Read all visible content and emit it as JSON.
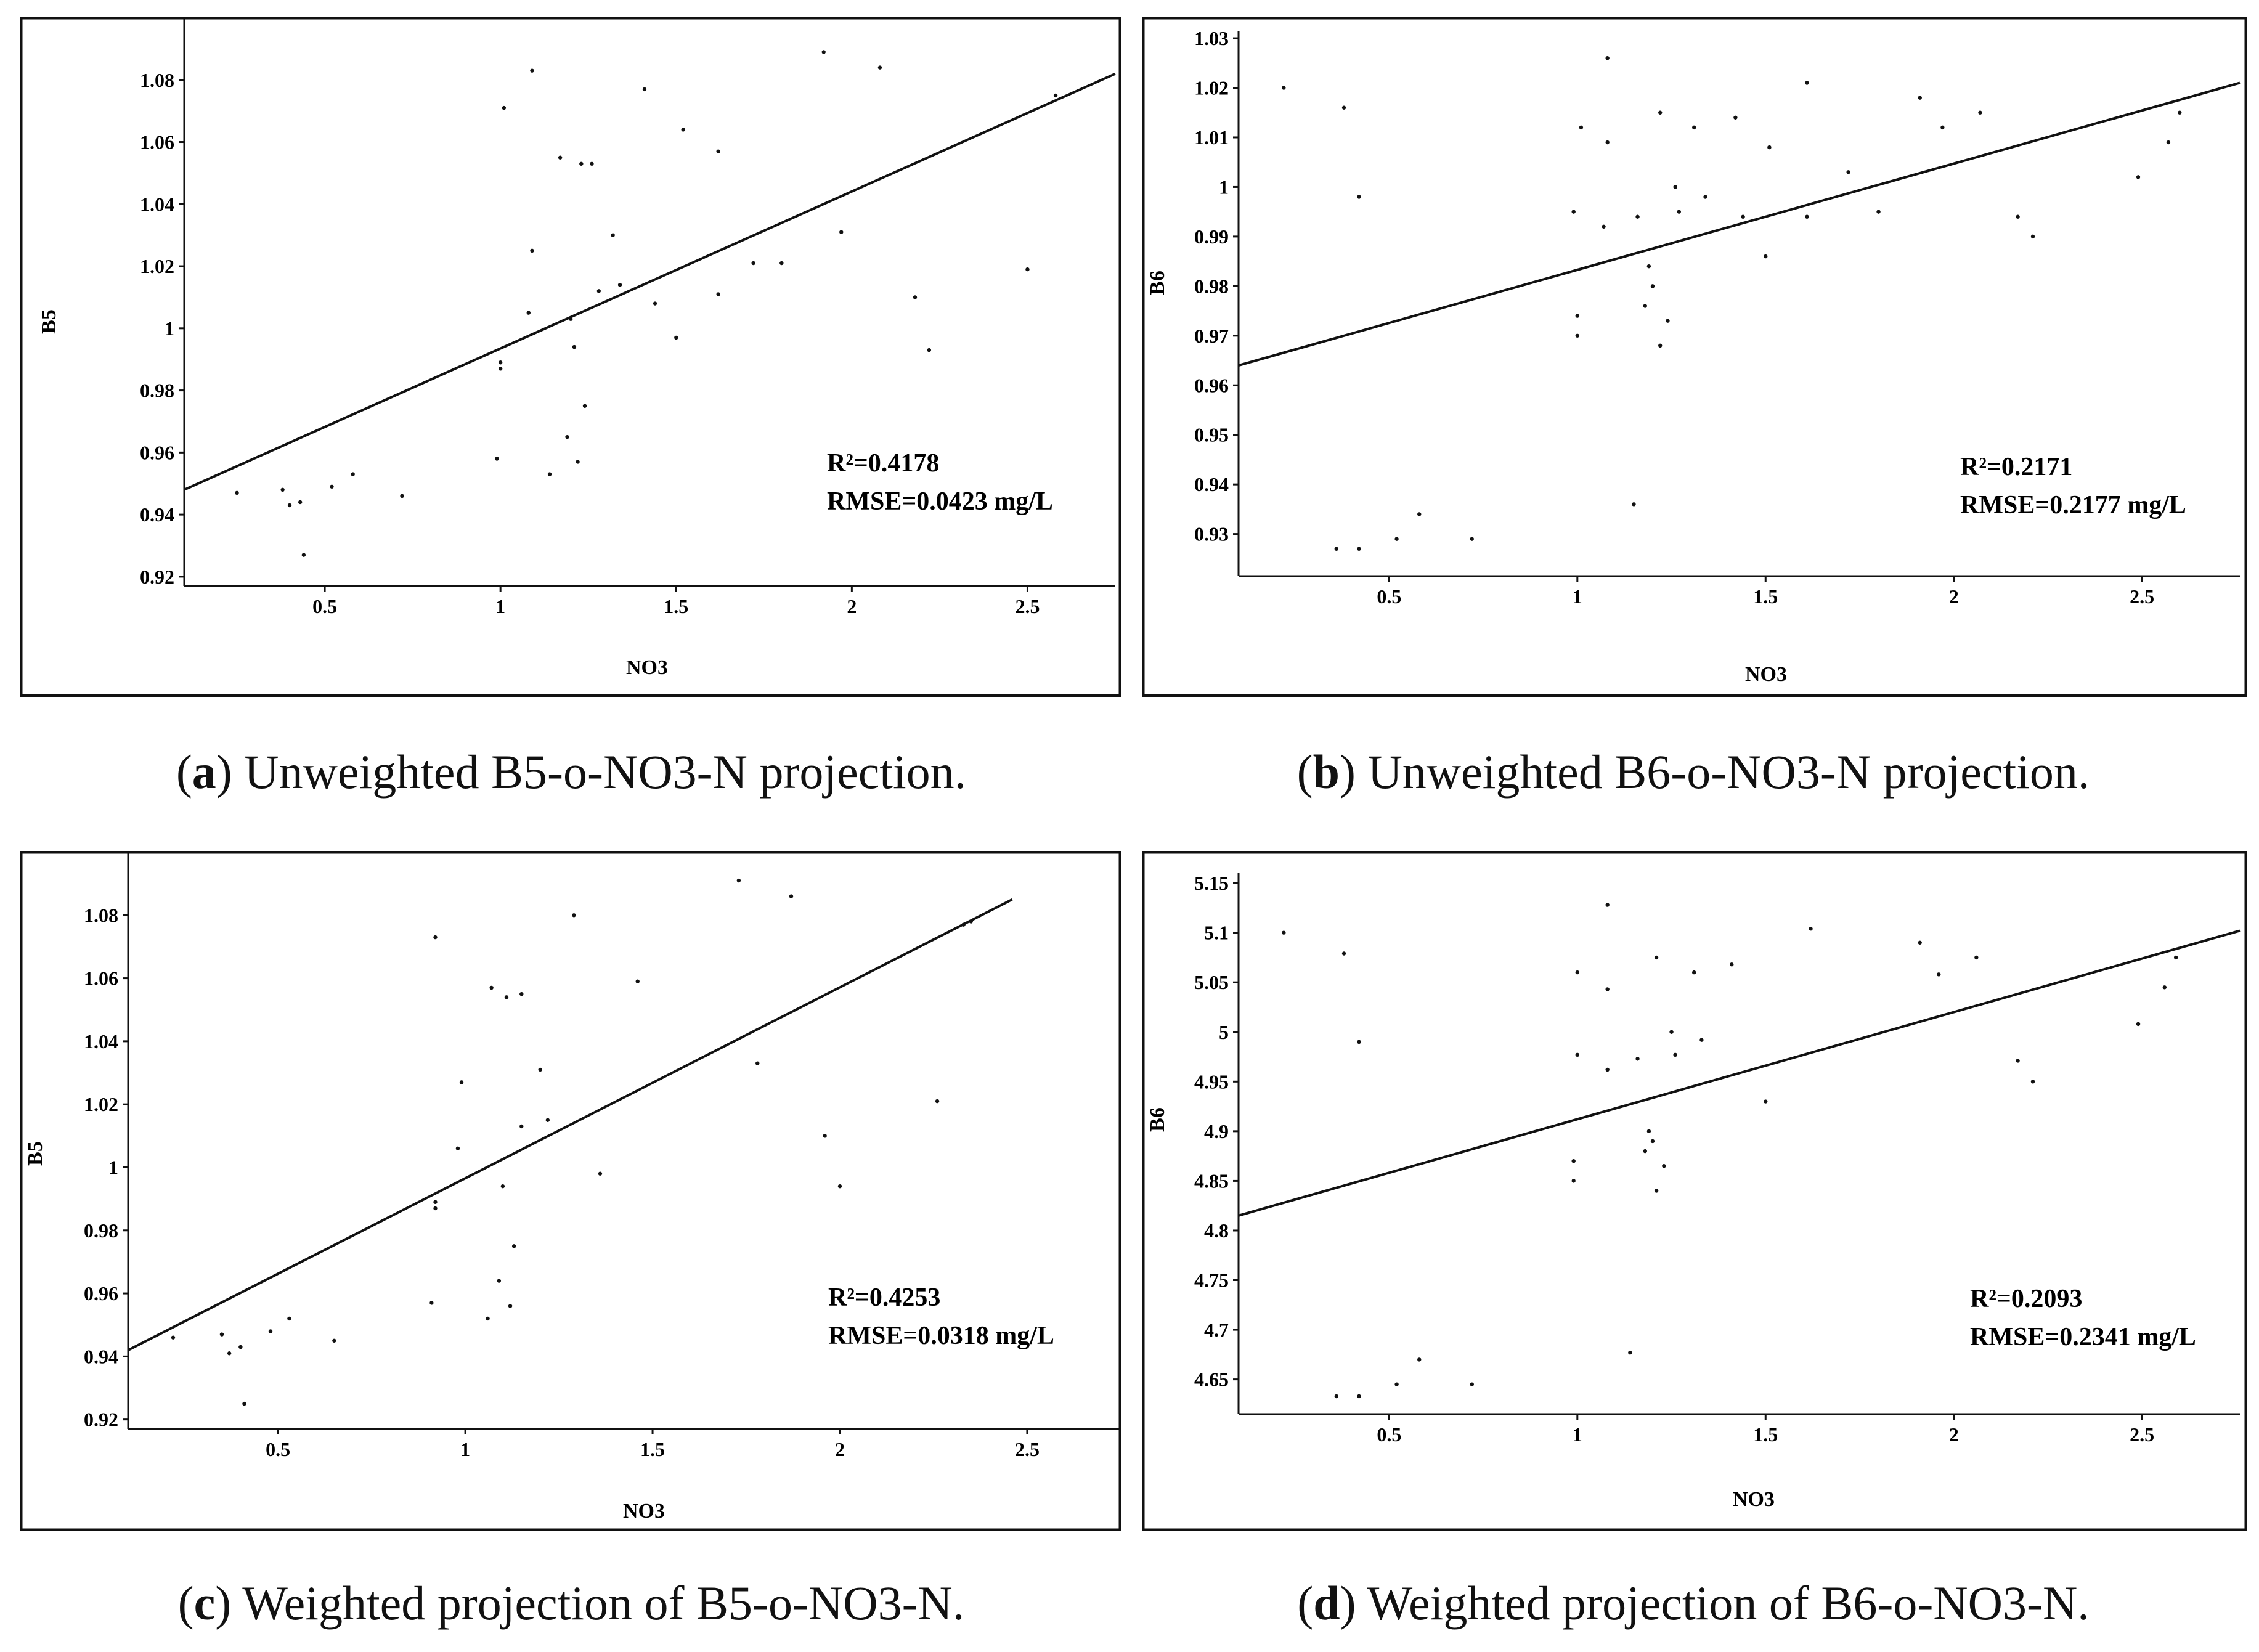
{
  "charts": [
    {
      "id": "a",
      "caption_letter": "a",
      "caption_text": "Unweighted B5-o-NO3-N projection.",
      "chart_data": {
        "type": "scatter",
        "xlabel": "NO3",
        "ylabel": "B5",
        "xlim": [
          0.1,
          2.75
        ],
        "ylim": [
          0.917,
          1.1
        ],
        "xticks": [
          0.5,
          1,
          1.5,
          2,
          2.5
        ],
        "xtick_labels": [
          "0.5",
          "1",
          "1.5",
          "2",
          "2.5"
        ],
        "yticks": [
          0.92,
          0.94,
          0.96,
          0.98,
          1,
          1.02,
          1.04,
          1.06,
          1.08
        ],
        "ytick_labels": [
          "0.92",
          "0.94",
          "0.96",
          "0.98",
          "1",
          "1.02",
          "1.04",
          "1.06",
          "1.08"
        ],
        "stats": [
          "R²=0.4178",
          "RMSE=0.0423 mg/L"
        ],
        "fit_line": {
          "x": [
            0.1,
            2.75
          ],
          "y": [
            0.948,
            1.082
          ]
        },
        "points": [
          [
            0.25,
            0.947
          ],
          [
            0.38,
            0.948
          ],
          [
            0.4,
            0.943
          ],
          [
            0.43,
            0.944
          ],
          [
            0.44,
            0.927
          ],
          [
            0.52,
            0.949
          ],
          [
            0.58,
            0.953
          ],
          [
            0.72,
            0.946
          ],
          [
            0.99,
            0.958
          ],
          [
            1.0,
            0.987
          ],
          [
            1.0,
            0.989
          ],
          [
            1.01,
            1.071
          ],
          [
            1.08,
            1.005
          ],
          [
            1.09,
            1.025
          ],
          [
            1.09,
            1.083
          ],
          [
            1.14,
            0.953
          ],
          [
            1.17,
            1.055
          ],
          [
            1.19,
            0.965
          ],
          [
            1.2,
            1.003
          ],
          [
            1.21,
            0.994
          ],
          [
            1.22,
            0.957
          ],
          [
            1.23,
            1.053
          ],
          [
            1.24,
            0.975
          ],
          [
            1.26,
            1.053
          ],
          [
            1.28,
            1.012
          ],
          [
            1.32,
            1.03
          ],
          [
            1.34,
            1.014
          ],
          [
            1.41,
            1.077
          ],
          [
            1.44,
            1.008
          ],
          [
            1.5,
            0.997
          ],
          [
            1.52,
            1.064
          ],
          [
            1.62,
            1.011
          ],
          [
            1.62,
            1.057
          ],
          [
            1.72,
            1.021
          ],
          [
            1.8,
            1.021
          ],
          [
            1.92,
            1.089
          ],
          [
            1.97,
            1.031
          ],
          [
            2.08,
            1.084
          ],
          [
            2.18,
            1.01
          ],
          [
            2.22,
            0.993
          ],
          [
            2.5,
            1.019
          ],
          [
            2.58,
            1.075
          ]
        ]
      }
    },
    {
      "id": "b",
      "caption_letter": "b",
      "caption_text": "Unweighted B6-o-NO3-N projection.",
      "chart_data": {
        "type": "scatter",
        "xlabel": "NO3",
        "ylabel": "B6",
        "xlim": [
          0.1,
          2.76
        ],
        "ylim": [
          0.9215,
          1.0315
        ],
        "xticks": [
          0.5,
          1,
          1.5,
          2,
          2.5
        ],
        "xtick_labels": [
          "0.5",
          "1",
          "1.5",
          "2",
          "2.5"
        ],
        "yticks": [
          0.93,
          0.94,
          0.95,
          0.96,
          0.97,
          0.98,
          0.99,
          1,
          1.01,
          1.02,
          1.03
        ],
        "ytick_labels": [
          "0.93",
          "0.94",
          "0.95",
          "0.96",
          "0.97",
          "0.98",
          "0.99",
          "1",
          "1.01",
          "1.02",
          "1.03"
        ],
        "stats": [
          "R²=0.2171",
          "RMSE=0.2177 mg/L"
        ],
        "fit_line": {
          "x": [
            0.1,
            2.76
          ],
          "y": [
            0.964,
            1.021
          ]
        },
        "points": [
          [
            0.22,
            1.02
          ],
          [
            0.36,
            0.927
          ],
          [
            0.38,
            1.016
          ],
          [
            0.42,
            0.998
          ],
          [
            0.42,
            0.927
          ],
          [
            0.52,
            0.929
          ],
          [
            0.58,
            0.934
          ],
          [
            0.72,
            0.929
          ],
          [
            0.99,
            0.995
          ],
          [
            1.0,
            0.97
          ],
          [
            1.0,
            0.974
          ],
          [
            1.01,
            1.012
          ],
          [
            1.07,
            0.992
          ],
          [
            1.08,
            1.009
          ],
          [
            1.08,
            1.026
          ],
          [
            1.15,
            0.936
          ],
          [
            1.16,
            0.994
          ],
          [
            1.18,
            0.976
          ],
          [
            1.19,
            0.984
          ],
          [
            1.2,
            0.98
          ],
          [
            1.22,
            0.968
          ],
          [
            1.22,
            1.015
          ],
          [
            1.24,
            0.973
          ],
          [
            1.26,
            1.0
          ],
          [
            1.27,
            0.995
          ],
          [
            1.31,
            1.012
          ],
          [
            1.34,
            0.998
          ],
          [
            1.42,
            1.014
          ],
          [
            1.44,
            0.994
          ],
          [
            1.5,
            0.986
          ],
          [
            1.51,
            1.008
          ],
          [
            1.61,
            0.994
          ],
          [
            1.61,
            1.021
          ],
          [
            1.72,
            1.003
          ],
          [
            1.8,
            0.995
          ],
          [
            1.91,
            1.018
          ],
          [
            1.97,
            1.012
          ],
          [
            2.07,
            1.015
          ],
          [
            2.17,
            0.994
          ],
          [
            2.21,
            0.99
          ],
          [
            2.49,
            1.002
          ],
          [
            2.57,
            1.009
          ],
          [
            2.6,
            1.015
          ]
        ]
      }
    },
    {
      "id": "c",
      "caption_letter": "c",
      "caption_text": "Weighted projection of B5-o-NO3-N.",
      "chart_data": {
        "type": "scatter",
        "xlabel": "NO3",
        "ylabel": "B5",
        "xlim": [
          0.1,
          2.76
        ],
        "ylim": [
          0.917,
          1.1
        ],
        "xticks": [
          0.5,
          1,
          1.5,
          2,
          2.5
        ],
        "xtick_labels": [
          "0.5",
          "1",
          "1.5",
          "2",
          "2.5"
        ],
        "yticks": [
          0.92,
          0.94,
          0.96,
          0.98,
          1,
          1.02,
          1.04,
          1.06,
          1.08
        ],
        "ytick_labels": [
          "0.92",
          "0.94",
          "0.96",
          "0.98",
          "1",
          "1.02",
          "1.04",
          "1.06",
          "1.08"
        ],
        "stats": [
          "R²=0.4253",
          "RMSE=0.0318 mg/L"
        ],
        "fit_line": {
          "x": [
            0.1,
            2.46
          ],
          "y": [
            0.942,
            1.085
          ]
        },
        "points": [
          [
            0.22,
            0.946
          ],
          [
            0.35,
            0.947
          ],
          [
            0.37,
            0.941
          ],
          [
            0.4,
            0.943
          ],
          [
            0.41,
            0.925
          ],
          [
            0.48,
            0.948
          ],
          [
            0.53,
            0.952
          ],
          [
            0.65,
            0.945
          ],
          [
            0.91,
            0.957
          ],
          [
            0.92,
            0.987
          ],
          [
            0.92,
            0.989
          ],
          [
            0.92,
            1.073
          ],
          [
            0.98,
            1.006
          ],
          [
            0.99,
            1.027
          ],
          [
            1.06,
            0.952
          ],
          [
            1.07,
            1.057
          ],
          [
            1.09,
            0.964
          ],
          [
            1.1,
            0.994
          ],
          [
            1.11,
            1.054
          ],
          [
            1.12,
            0.956
          ],
          [
            1.13,
            0.975
          ],
          [
            1.15,
            1.055
          ],
          [
            1.15,
            1.013
          ],
          [
            1.2,
            1.031
          ],
          [
            1.22,
            1.015
          ],
          [
            1.29,
            1.08
          ],
          [
            1.36,
            0.998
          ],
          [
            1.46,
            1.059
          ],
          [
            1.73,
            1.091
          ],
          [
            1.78,
            1.033
          ],
          [
            1.87,
            1.086
          ],
          [
            1.96,
            1.01
          ],
          [
            2.0,
            0.994
          ],
          [
            2.26,
            1.021
          ],
          [
            2.33,
            1.077
          ],
          [
            2.35,
            1.078
          ]
        ]
      }
    },
    {
      "id": "d",
      "caption_letter": "d",
      "caption_text": "Weighted projection of B6-o-NO3-N.",
      "chart_data": {
        "type": "scatter",
        "xlabel": "NO3",
        "ylabel": "B6",
        "xlim": [
          0.1,
          2.76
        ],
        "ylim": [
          4.615,
          5.16
        ],
        "xticks": [
          0.5,
          1,
          1.5,
          2,
          2.5
        ],
        "xtick_labels": [
          "0.5",
          "1",
          "1.5",
          "2",
          "2.5"
        ],
        "yticks": [
          4.65,
          4.7,
          4.75,
          4.8,
          4.85,
          4.9,
          4.95,
          5,
          5.05,
          5.1,
          5.15
        ],
        "ytick_labels": [
          "4.65",
          "4.7",
          "4.75",
          "4.8",
          "4.85",
          "4.9",
          "4.95",
          "5",
          "5.05",
          "5.1",
          "5.15"
        ],
        "stats": [
          "R²=0.2093",
          "RMSE=0.2341 mg/L"
        ],
        "fit_line": {
          "x": [
            0.1,
            2.76
          ],
          "y": [
            4.815,
            5.102
          ]
        },
        "points": [
          [
            0.22,
            5.1
          ],
          [
            0.36,
            4.633
          ],
          [
            0.38,
            5.079
          ],
          [
            0.42,
            4.99
          ],
          [
            0.42,
            4.633
          ],
          [
            0.52,
            4.645
          ],
          [
            0.58,
            4.67
          ],
          [
            0.72,
            4.645
          ],
          [
            0.99,
            4.85
          ],
          [
            0.99,
            4.87
          ],
          [
            1.0,
            4.977
          ],
          [
            1.0,
            5.06
          ],
          [
            1.08,
            4.962
          ],
          [
            1.08,
            5.043
          ],
          [
            1.08,
            5.128
          ],
          [
            1.14,
            4.677
          ],
          [
            1.16,
            4.973
          ],
          [
            1.18,
            4.88
          ],
          [
            1.19,
            4.9
          ],
          [
            1.2,
            4.89
          ],
          [
            1.21,
            4.84
          ],
          [
            1.21,
            5.075
          ],
          [
            1.23,
            4.865
          ],
          [
            1.25,
            5.0
          ],
          [
            1.26,
            4.977
          ],
          [
            1.31,
            5.06
          ],
          [
            1.33,
            4.992
          ],
          [
            1.41,
            5.068
          ],
          [
            1.5,
            4.93
          ],
          [
            1.62,
            5.104
          ],
          [
            1.91,
            5.09
          ],
          [
            1.96,
            5.058
          ],
          [
            2.06,
            5.075
          ],
          [
            2.17,
            4.971
          ],
          [
            2.21,
            4.95
          ],
          [
            2.49,
            5.008
          ],
          [
            2.56,
            5.045
          ],
          [
            2.59,
            5.075
          ]
        ]
      }
    }
  ]
}
